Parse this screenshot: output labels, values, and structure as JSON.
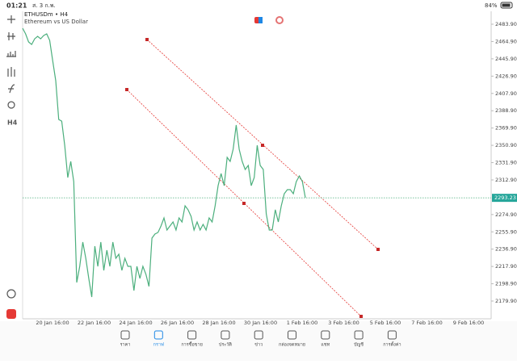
{
  "status_bar": {
    "time": "01:21",
    "date": "ส. 3 ก.พ.",
    "battery": "84%"
  },
  "symbol": {
    "name": "ETHUSDm • H4",
    "description": "Ethereum vs US Dollar"
  },
  "chart": {
    "type": "line",
    "color": "#4caf7d",
    "values": [
      2479.5,
      2473.3,
      2464.4,
      2461.7,
      2467.9,
      2470.6,
      2467.9,
      2471.5,
      2473.3,
      2466.2,
      2444.0,
      2421.9,
      2379.3,
      2377.5,
      2351.0,
      2315.5,
      2333.2,
      2311.1,
      2200.3,
      2218.0,
      2244.6,
      2226.9,
      2204.7,
      2184.3,
      2240.2,
      2218.0,
      2244.6,
      2213.6,
      2235.7,
      2218.0,
      2244.6,
      2226.9,
      2231.3,
      2213.6,
      2226.9,
      2218.0,
      2218.0,
      2191.4,
      2218.0,
      2204.7,
      2218.0,
      2209.1,
      2195.9,
      2249.0,
      2253.5,
      2255.2,
      2262.3,
      2271.2,
      2257.9,
      2262.3,
      2266.8,
      2257.9,
      2271.2,
      2266.8,
      2284.5,
      2280.1,
      2273.0,
      2257.9,
      2266.8,
      2257.9,
      2264.1,
      2257.9,
      2271.2,
      2266.8,
      2284.5,
      2306.6,
      2319.9,
      2306.6,
      2337.7,
      2333.2,
      2346.5,
      2373.1,
      2346.5,
      2333.2,
      2324.4,
      2328.8,
      2306.6,
      2315.5,
      2351.0,
      2328.8,
      2324.4,
      2275.6,
      2257.9,
      2257.9,
      2280.1,
      2266.8,
      2284.5,
      2297.8,
      2302.2,
      2302.2,
      2297.8,
      2311.1,
      2317.3,
      2311.1,
      2293.4
    ],
    "ylim": [
      2160.4,
      2491.0
    ],
    "yticks": [
      {
        "value": 2483.9,
        "label": "2483.90"
      },
      {
        "value": 2464.9,
        "label": "2464.90"
      },
      {
        "value": 2445.9,
        "label": "2445.90"
      },
      {
        "value": 2426.9,
        "label": "2426.90"
      },
      {
        "value": 2407.9,
        "label": "2407.90"
      },
      {
        "value": 2388.9,
        "label": "2388.90"
      },
      {
        "value": 2369.9,
        "label": "2369.90"
      },
      {
        "value": 2350.9,
        "label": "2350.90"
      },
      {
        "value": 2331.9,
        "label": "2331.90"
      },
      {
        "value": 2312.9,
        "label": "2312.90"
      },
      {
        "value": 2274.9,
        "label": "2274.90"
      },
      {
        "value": 2255.9,
        "label": "2255.90"
      },
      {
        "value": 2236.9,
        "label": "2236.90"
      },
      {
        "value": 2217.9,
        "label": "2217.90"
      },
      {
        "value": 2198.9,
        "label": "2198.90"
      },
      {
        "value": 2179.9,
        "label": "2179.90"
      }
    ],
    "current_price": 2293.23,
    "x_labels": [
      "20 Jan 16:00",
      "22 Jan 16:00",
      "24 Jan 16:00",
      "26 Jan 16:00",
      "28 Jan 16:00",
      "30 Jan 16:00",
      "1 Feb 16:00",
      "3 Feb 16:00",
      "5 Feb 16:00",
      "7 Feb 16:00",
      "9 Feb 16:00"
    ]
  },
  "nav": [
    "ราคา",
    "กราฟ",
    "การซื้อขาย",
    "ประวัติ",
    "ข่าว",
    "กล่องจดหมาย",
    "แชท",
    "บัญชี",
    "การตั้งค่า"
  ]
}
